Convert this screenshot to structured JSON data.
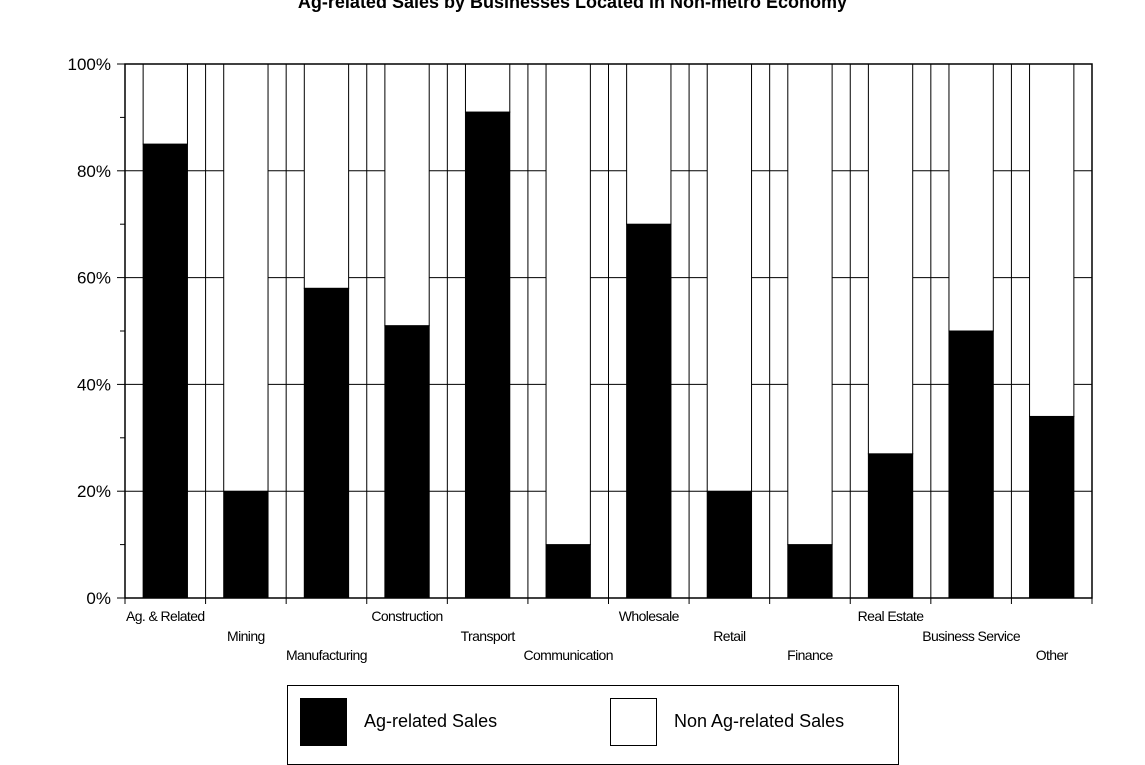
{
  "title": "Ag-related Sales by Businesses Located in Non-metro Economy",
  "colors": {
    "ag": "#000000",
    "non_ag": "#ffffff",
    "grid": "#000000",
    "background": "#ffffff"
  },
  "legend": {
    "position": "bottom",
    "items": [
      {
        "label": "Ag-related Sales",
        "color": "#000000"
      },
      {
        "label": "Non Ag-related Sales",
        "color": "#ffffff"
      }
    ]
  },
  "chart_data": {
    "type": "bar",
    "stacked": true,
    "title": "Ag-related Sales by Businesses Located in Non-metro Economy",
    "xlabel": "",
    "ylabel": "",
    "ylim": [
      0,
      100
    ],
    "y_ticks": [
      "0%",
      "20%",
      "40%",
      "60%",
      "80%",
      "100%"
    ],
    "grid": true,
    "legend_position": "bottom",
    "categories": [
      "Ag. & Related",
      "Mining",
      "Manufacturing",
      "Construction",
      "Transport",
      "Communication",
      "Wholesale",
      "Retail",
      "Finance",
      "Real Estate",
      "Business Service",
      "Other"
    ],
    "series": [
      {
        "name": "Ag-related Sales",
        "values": [
          85,
          20,
          58,
          51,
          91,
          10,
          70,
          20,
          10,
          27,
          50,
          34
        ]
      },
      {
        "name": "Non Ag-related Sales",
        "values": [
          15,
          80,
          42,
          49,
          9,
          90,
          30,
          80,
          90,
          73,
          50,
          66
        ]
      }
    ]
  }
}
